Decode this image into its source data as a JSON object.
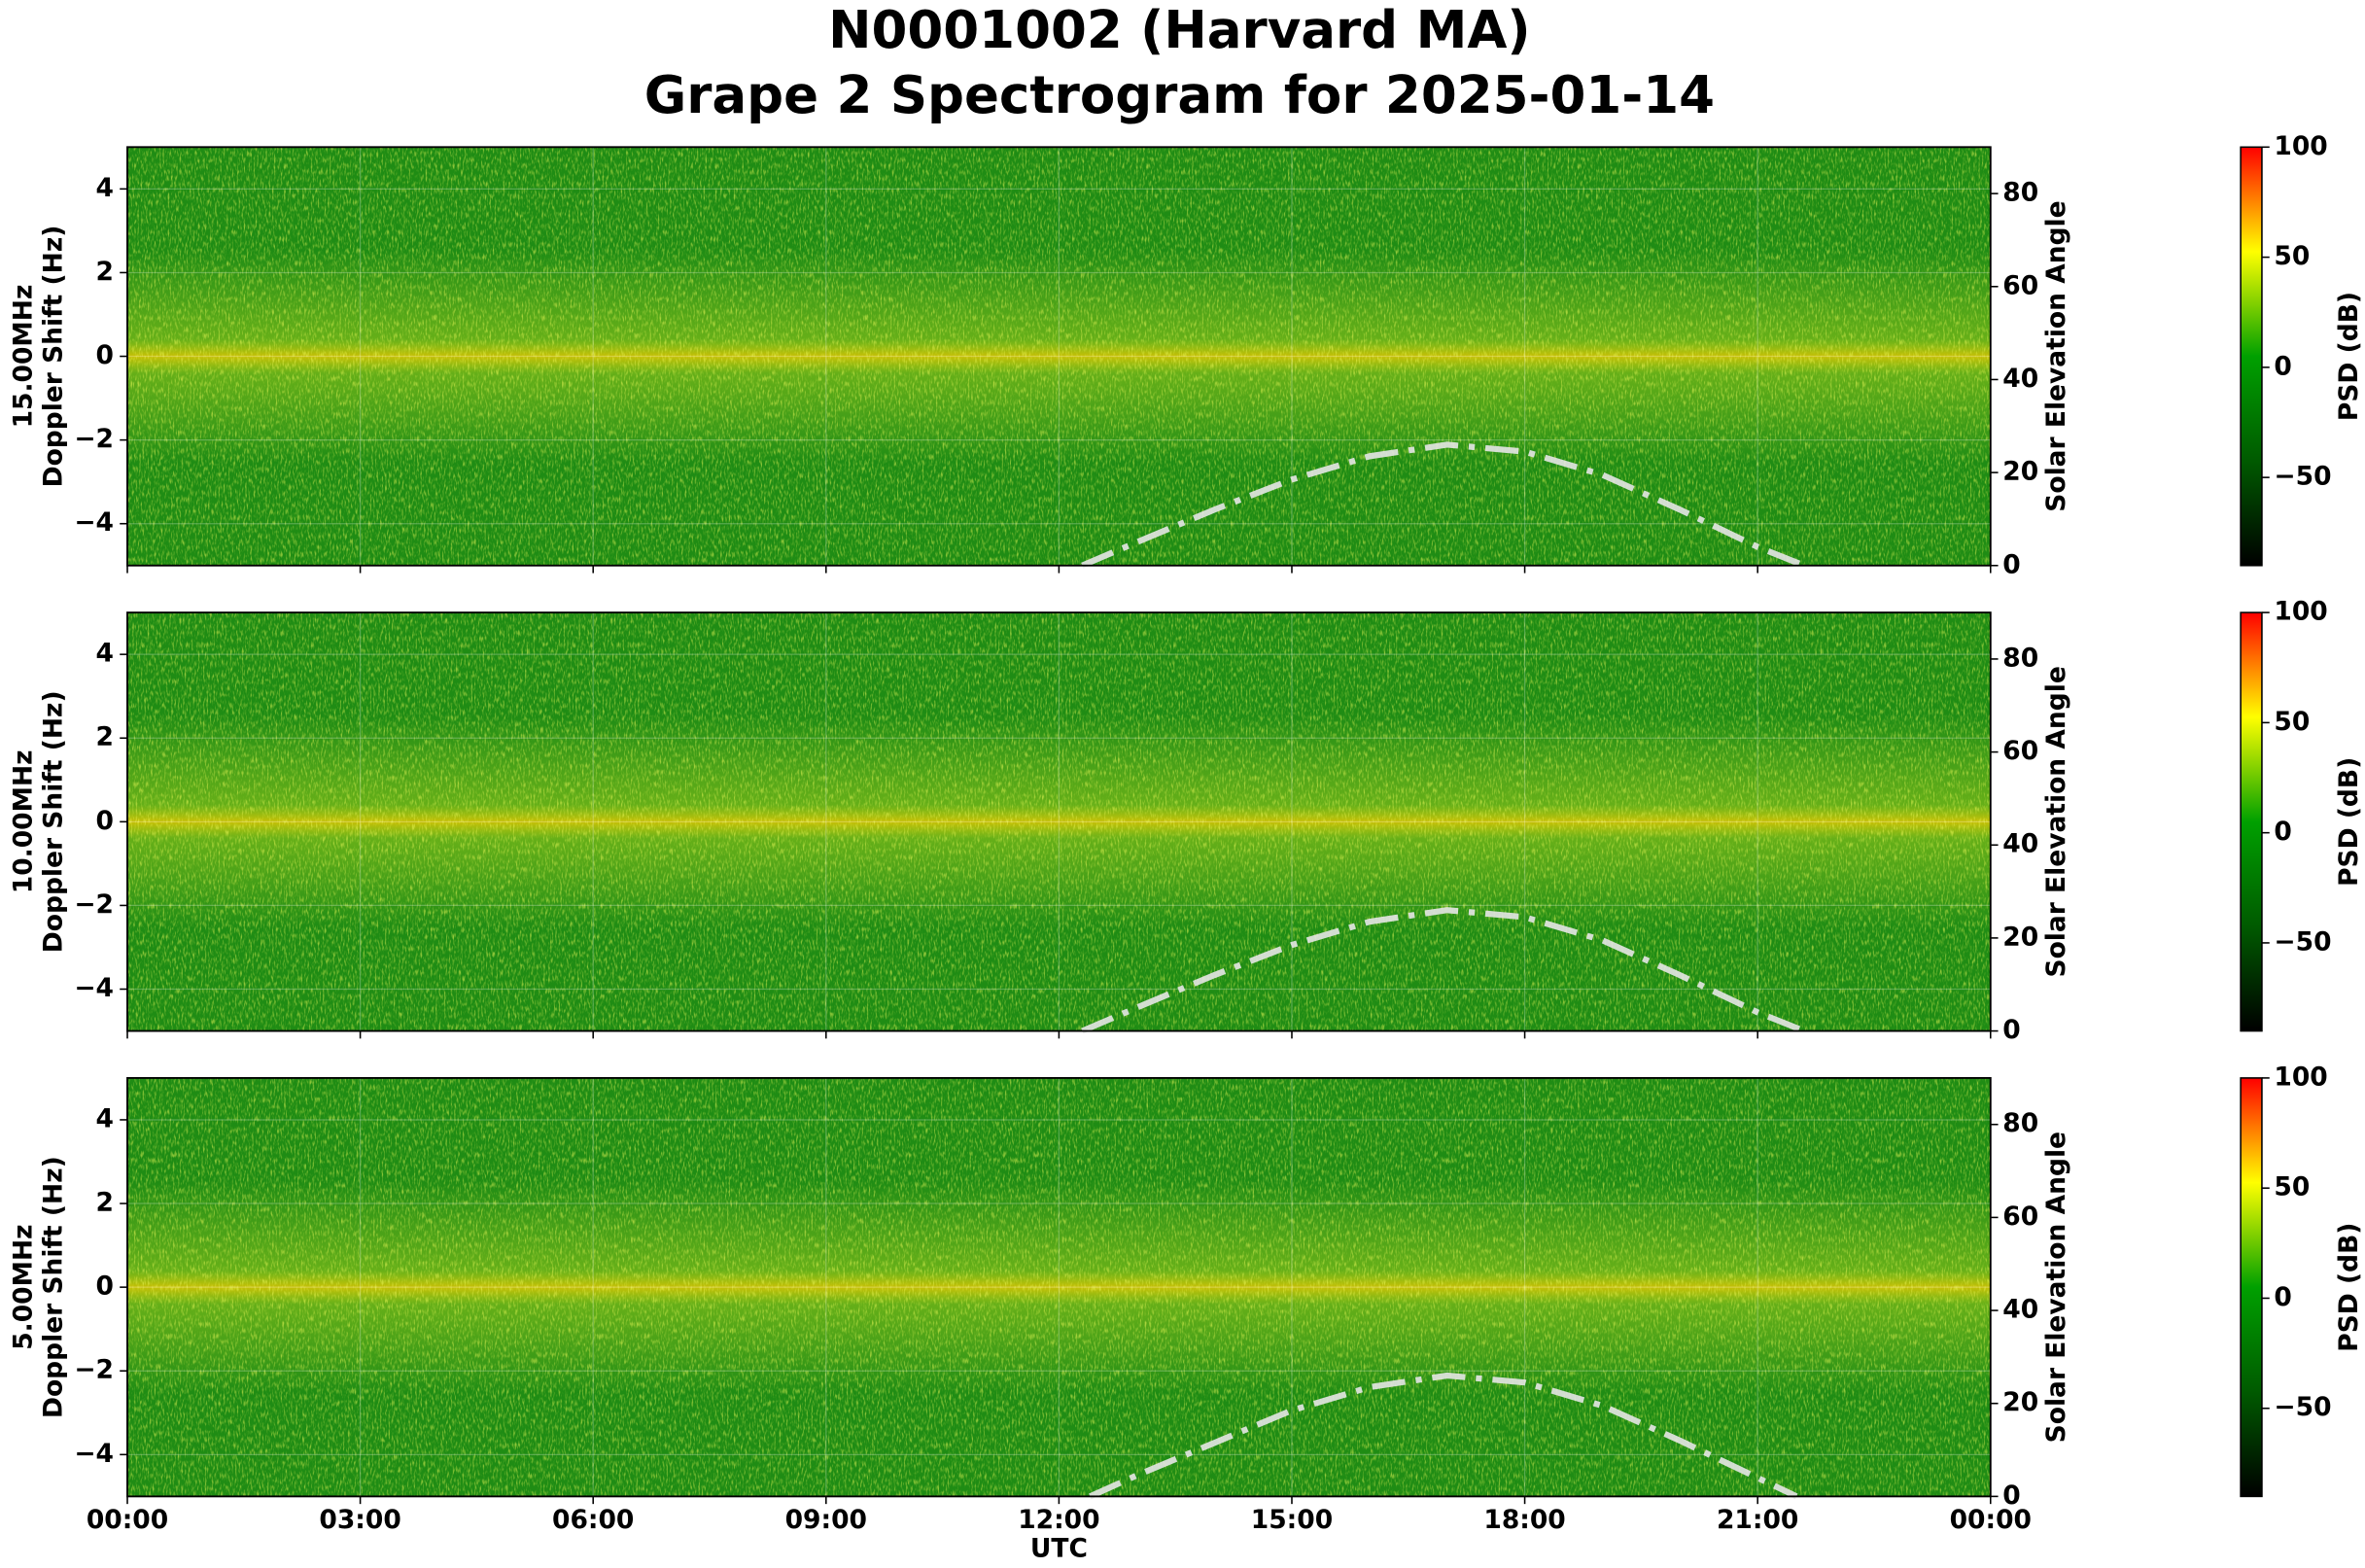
{
  "title": "N0001002 (Harvard MA)",
  "subtitle": "Grape 2 Spectrogram for 2025-01-14",
  "chart_data": [
    {
      "type": "line",
      "ylabel": [
        "15.00MHz",
        "Doppler Shift (Hz)"
      ],
      "y2label": "Solar Elevation Angle",
      "xlim": [
        0,
        24
      ],
      "xticks": [
        0,
        3,
        6,
        9,
        12,
        15,
        18,
        21,
        24
      ],
      "ylim": [
        -5,
        5
      ],
      "yticks": [
        {
          "value": -4,
          "label": "−4"
        },
        {
          "value": -2,
          "label": "−2"
        },
        0,
        2,
        4
      ],
      "y2lim": [
        0,
        90
      ],
      "y2ticks": [
        0,
        20,
        40,
        60,
        80
      ],
      "grid": true,
      "series": [
        {
          "color": "#e6e6e6",
          "axis": "y2",
          "dash": "dashdot",
          "x": [
            12.3,
            13,
            14,
            15,
            16,
            17,
            18,
            19,
            20,
            21,
            21.6
          ],
          "values": [
            0,
            5,
            12,
            18.5,
            23.5,
            26,
            24.5,
            19.5,
            12,
            4,
            0
          ]
        }
      ],
      "colorbar": {
        "label": "PSD (dB)",
        "clim": [
          -90,
          100
        ],
        "ticks": [
          {
            "value": -50,
            "label": "−50"
          },
          0,
          50,
          100
        ],
        "colormap": [
          "#000000",
          "#005a00",
          "#00a000",
          "#ffff00",
          "#ff0000"
        ]
      }
    },
    {
      "type": "line",
      "ylabel": [
        "10.00MHz",
        "Doppler Shift (Hz)"
      ],
      "y2label": "Solar Elevation Angle",
      "xlim": [
        0,
        24
      ],
      "xticks": [
        0,
        3,
        6,
        9,
        12,
        15,
        18,
        21,
        24
      ],
      "ylim": [
        -5,
        5
      ],
      "yticks": [
        {
          "value": -4,
          "label": "−4"
        },
        {
          "value": -2,
          "label": "−2"
        },
        0,
        2,
        4
      ],
      "y2lim": [
        0,
        90
      ],
      "y2ticks": [
        0,
        20,
        40,
        60,
        80
      ],
      "grid": true,
      "series": [
        {
          "color": "#e6e6e6",
          "axis": "y2",
          "dash": "dashdot",
          "x": [
            12.3,
            13,
            14,
            15,
            16,
            17,
            18,
            19,
            20,
            21,
            21.6
          ],
          "values": [
            0,
            5,
            12,
            18.5,
            23.5,
            26,
            24.5,
            19.5,
            12,
            4,
            0
          ]
        }
      ],
      "colorbar": {
        "label": "PSD (dB)",
        "clim": [
          -90,
          100
        ],
        "ticks": [
          {
            "value": -50,
            "label": "−50"
          },
          0,
          50,
          100
        ],
        "colormap": [
          "#000000",
          "#005a00",
          "#00a000",
          "#ffff00",
          "#ff0000"
        ]
      }
    },
    {
      "type": "line",
      "ylabel": [
        "5.00MHz",
        "Doppler Shift (Hz)"
      ],
      "y2label": "Solar Elevation Angle",
      "xlabel": "UTC",
      "xlim": [
        0,
        24
      ],
      "xticks": [
        {
          "value": 0,
          "label": "00:00"
        },
        {
          "value": 3,
          "label": "03:00"
        },
        {
          "value": 6,
          "label": "06:00"
        },
        {
          "value": 9,
          "label": "09:00"
        },
        {
          "value": 12,
          "label": "12:00"
        },
        {
          "value": 15,
          "label": "15:00"
        },
        {
          "value": 18,
          "label": "18:00"
        },
        {
          "value": 21,
          "label": "21:00"
        },
        {
          "value": 24,
          "label": "00:00"
        }
      ],
      "ylim": [
        -5,
        5
      ],
      "yticks": [
        {
          "value": -4,
          "label": "−4"
        },
        {
          "value": -2,
          "label": "−2"
        },
        0,
        2,
        4
      ],
      "y2lim": [
        0,
        90
      ],
      "y2ticks": [
        0,
        20,
        40,
        60,
        80
      ],
      "grid": true,
      "series": [
        {
          "color": "#e6e6e6",
          "axis": "y2",
          "dash": "dashdot",
          "x": [
            12.4,
            13,
            14,
            15,
            16,
            17,
            18,
            19,
            20,
            21,
            21.5
          ],
          "values": [
            0,
            4.5,
            11.5,
            18.5,
            23.5,
            26,
            24.5,
            19.5,
            12,
            4,
            0
          ]
        }
      ],
      "colorbar": {
        "label": "PSD (dB)",
        "clim": [
          -90,
          100
        ],
        "ticks": [
          {
            "value": -50,
            "label": "−50"
          },
          0,
          50,
          100
        ],
        "colormap": [
          "#000000",
          "#005a00",
          "#00a000",
          "#ffff00",
          "#ff0000"
        ]
      }
    }
  ]
}
